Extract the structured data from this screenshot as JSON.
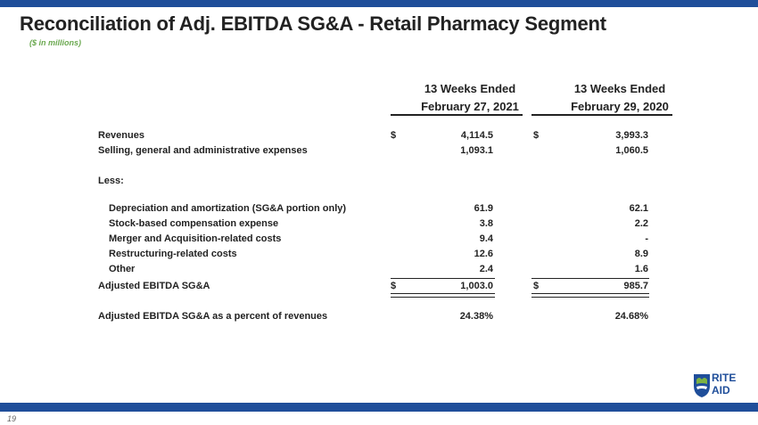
{
  "title": "Reconciliation of Adj. EBITDA SG&A - Retail Pharmacy Segment",
  "subtitle": "($ in millions)",
  "columns": [
    {
      "line1": "13 Weeks Ended",
      "line2": "February 27, 2021"
    },
    {
      "line1": "13 Weeks Ended",
      "line2": "February 29, 2020"
    }
  ],
  "currency_symbol": "$",
  "rows": {
    "revenues": {
      "label": "Revenues",
      "v1": "4,114.5",
      "v2": "3,993.3"
    },
    "sga": {
      "label": "Selling, general and administrative expenses",
      "v1": "1,093.1",
      "v2": "1,060.5"
    },
    "less": {
      "label": "Less:"
    },
    "dep": {
      "label": "Depreciation and amortization (SG&A portion only)",
      "v1": "61.9",
      "v2": "62.1"
    },
    "stock": {
      "label": "Stock-based compensation expense",
      "v1": "3.8",
      "v2": "2.2"
    },
    "merger": {
      "label": "Merger and Acquisition-related costs",
      "v1": "9.4",
      "v2": "-"
    },
    "restruct": {
      "label": "Restructuring-related costs",
      "v1": "12.6",
      "v2": "8.9"
    },
    "other": {
      "label": "Other",
      "v1": "2.4",
      "v2": "1.6"
    },
    "adjusted": {
      "label": "Adjusted EBITDA SG&A",
      "v1": "1,003.0",
      "v2": "985.7"
    },
    "percent": {
      "label": "Adjusted EBITDA SG&A as a percent of revenues",
      "v1": "24.38%",
      "v2": "24.68%"
    }
  },
  "logo": {
    "line1": "RITE",
    "line2": "AID"
  },
  "page_number": "19",
  "colors": {
    "brand_blue": "#1f4e9a",
    "subtitle_green": "#6aa84f",
    "logo_green": "#7cb342"
  }
}
